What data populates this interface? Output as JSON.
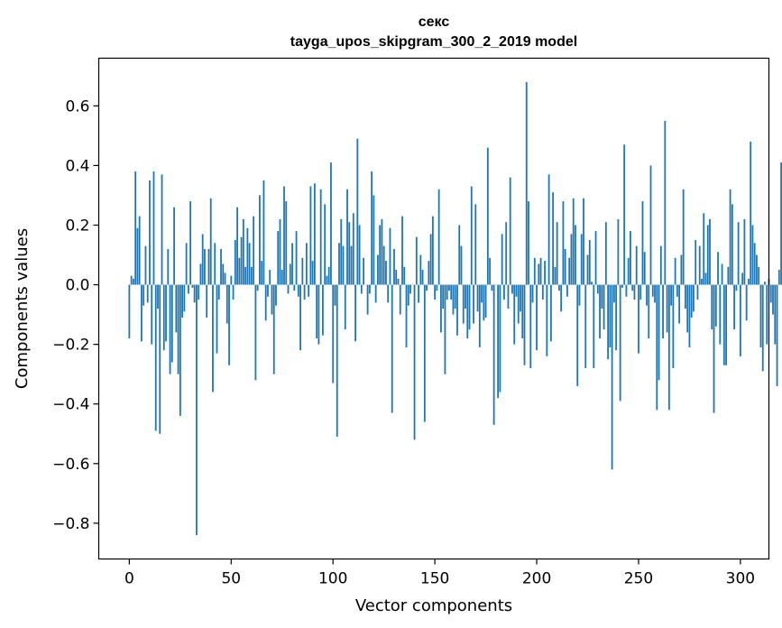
{
  "chart_data": {
    "type": "bar",
    "title_line1": "секс",
    "title_line2": "tayga_upos_skipgram_300_2_2019 model",
    "xlabel": "Vector components",
    "ylabel": "Components values",
    "xlim": [
      -15,
      314
    ],
    "ylim": [
      -0.92,
      0.76
    ],
    "xticks": [
      0,
      50,
      100,
      150,
      200,
      250,
      300
    ],
    "xtick_labels": [
      "0",
      "50",
      "100",
      "150",
      "200",
      "250",
      "300"
    ],
    "yticks": [
      -0.8,
      -0.6,
      -0.4,
      -0.2,
      0.0,
      0.2,
      0.4,
      0.6
    ],
    "ytick_labels": [
      "−0.8",
      "−0.6",
      "−0.4",
      "−0.2",
      "0.0",
      "0.2",
      "0.4",
      "0.6"
    ],
    "bar_color": "#1f77b4",
    "values": [
      -0.18,
      0.03,
      0.02,
      0.38,
      0.19,
      0.23,
      -0.19,
      -0.07,
      0.13,
      -0.06,
      0.35,
      -0.2,
      0.38,
      -0.49,
      -0.08,
      -0.5,
      0.37,
      -0.22,
      -0.19,
      0.12,
      -0.3,
      -0.26,
      0.26,
      -0.16,
      -0.3,
      -0.44,
      -0.11,
      -0.09,
      0.14,
      -0.03,
      0.28,
      -0.01,
      -0.06,
      -0.84,
      -0.05,
      0.07,
      0.17,
      0.12,
      -0.11,
      0.12,
      0.29,
      -0.36,
      0.14,
      -0.23,
      -0.05,
      0.12,
      0.07,
      0.04,
      -0.13,
      -0.27,
      0.03,
      -0.05,
      0.15,
      0.26,
      0.09,
      0.16,
      0.22,
      0.06,
      0.19,
      0.14,
      0.06,
      0.23,
      -0.32,
      -0.02,
      0.3,
      0.08,
      0.35,
      -0.12,
      -0.04,
      0.05,
      -0.1,
      -0.3,
      -0.07,
      0.18,
      0.22,
      0.05,
      0.33,
      0.28,
      -0.03,
      0.07,
      0.14,
      -0.02,
      0.18,
      -0.04,
      -0.22,
      0.09,
      -0.05,
      0.14,
      -0.04,
      0.33,
      0.08,
      0.34,
      -0.18,
      -0.2,
      0.32,
      -0.17,
      0.27,
      0.03,
      0.06,
      0.41,
      -0.33,
      -0.07,
      -0.51,
      0.14,
      0.22,
      0.13,
      -0.15,
      0.32,
      0.21,
      0.13,
      0.24,
      -0.19,
      0.49,
      0.2,
      -0.03,
      0.09,
      0.0,
      -0.1,
      -0.03,
      0.38,
      0.3,
      -0.06,
      0.1,
      0.2,
      0.22,
      0.13,
      0.08,
      -0.06,
      0.19,
      -0.43,
      0.12,
      0.05,
      0.02,
      -0.1,
      0.23,
      0.06,
      -0.21,
      -0.07,
      -0.03,
      0.0,
      -0.52,
      0.16,
      -0.06,
      0.1,
      0.05,
      -0.46,
      -0.02,
      0.08,
      0.17,
      0.23,
      -0.05,
      -0.02,
      0.32,
      -0.16,
      -0.08,
      -0.3,
      -0.05,
      -0.02,
      -0.05,
      -0.1,
      -0.08,
      -0.17,
      0.2,
      0.13,
      -0.13,
      -0.08,
      -0.18,
      -0.15,
      0.33,
      -0.13,
      0.27,
      -0.09,
      -0.21,
      -0.06,
      -0.12,
      -0.11,
      0.46,
      0.09,
      -0.02,
      -0.47,
      0.0,
      -0.38,
      -0.36,
      0.17,
      -0.05,
      0.21,
      -0.08,
      0.36,
      -0.03,
      -0.2,
      -0.04,
      -0.13,
      -0.09,
      -0.18,
      -0.27,
      0.68,
      0.28,
      -0.28,
      -0.06,
      0.09,
      -0.22,
      0.07,
      0.09,
      -0.05,
      0.08,
      -0.24,
      0.37,
      -0.19,
      0.31,
      0.06,
      0.21,
      -0.02,
      -0.09,
      0.28,
      0.12,
      -0.04,
      0.09,
      0.17,
      0.29,
      0.2,
      -0.34,
      -0.07,
      0.17,
      0.29,
      -0.28,
      0.1,
      0.15,
      0.01,
      -0.28,
      0.18,
      -0.03,
      -0.18,
      -0.08,
      -0.15,
      0.21,
      -0.25,
      -0.21,
      -0.62,
      -0.06,
      -0.22,
      0.22,
      -0.39,
      -0.01,
      0.47,
      -0.04,
      0.09,
      0.18,
      -0.02,
      -0.05,
      0.13,
      -0.23,
      -0.05,
      0.28,
      0.11,
      -0.07,
      -0.18,
      0.4,
      -0.04,
      -0.06,
      -0.42,
      -0.32,
      0.13,
      -0.18,
      0.55,
      -0.16,
      -0.42,
      -0.07,
      -0.28,
      0.09,
      -0.04,
      -0.13,
      0.1,
      0.32,
      -0.08,
      -0.16,
      -0.21,
      -0.11,
      -0.09,
      0.15,
      -0.05,
      0.13,
      0.02,
      0.24,
      0.04,
      0.2,
      0.22,
      -0.15,
      -0.43,
      -0.14,
      0.11,
      -0.2,
      0.07,
      -0.27,
      -0.27,
      0.06,
      0.32,
      0.27,
      -0.15,
      -0.02,
      0.21,
      -0.24,
      0.04,
      0.22,
      -0.12,
      0.02,
      0.48,
      0.2,
      0.14,
      0.1,
      0.06,
      -0.21,
      -0.29,
      0.01,
      -0.2,
      0.02,
      -0.06,
      -0.1,
      -0.2,
      -0.34,
      0.05,
      0.41,
      -0.42
    ]
  }
}
